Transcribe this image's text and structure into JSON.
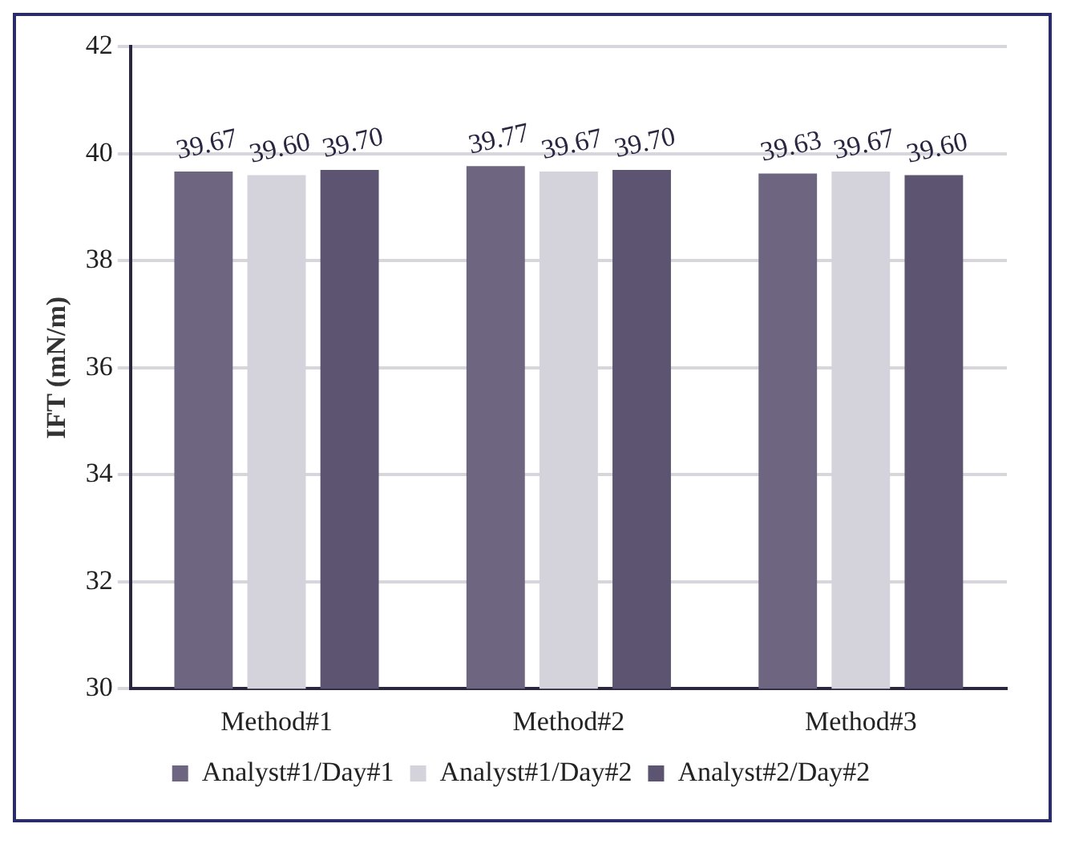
{
  "chart_data": {
    "type": "bar",
    "ylabel": "IFT (mN/m)",
    "categories": [
      "Method#1",
      "Method#2",
      "Method#3"
    ],
    "series": [
      {
        "name": "Analyst#1/Day#1",
        "color": "#6e6680",
        "values": [
          39.67,
          39.77,
          39.63
        ],
        "value_labels": [
          "39.67",
          "39.77",
          "39.63"
        ]
      },
      {
        "name": "Analyst#1/Day#2",
        "color": "#d4d2da",
        "values": [
          39.6,
          39.67,
          39.67
        ],
        "value_labels": [
          "39.60",
          "39.67",
          "39.67"
        ]
      },
      {
        "name": "Analyst#2/Day#2",
        "color": "#5c5470",
        "values": [
          39.7,
          39.7,
          39.6
        ],
        "value_labels": [
          "39.70",
          "39.70",
          "39.60"
        ]
      }
    ],
    "ylim": [
      30,
      42
    ],
    "yticks": [
      30,
      32,
      34,
      36,
      38,
      40,
      42
    ],
    "grid": "y",
    "legend": "bottom"
  }
}
